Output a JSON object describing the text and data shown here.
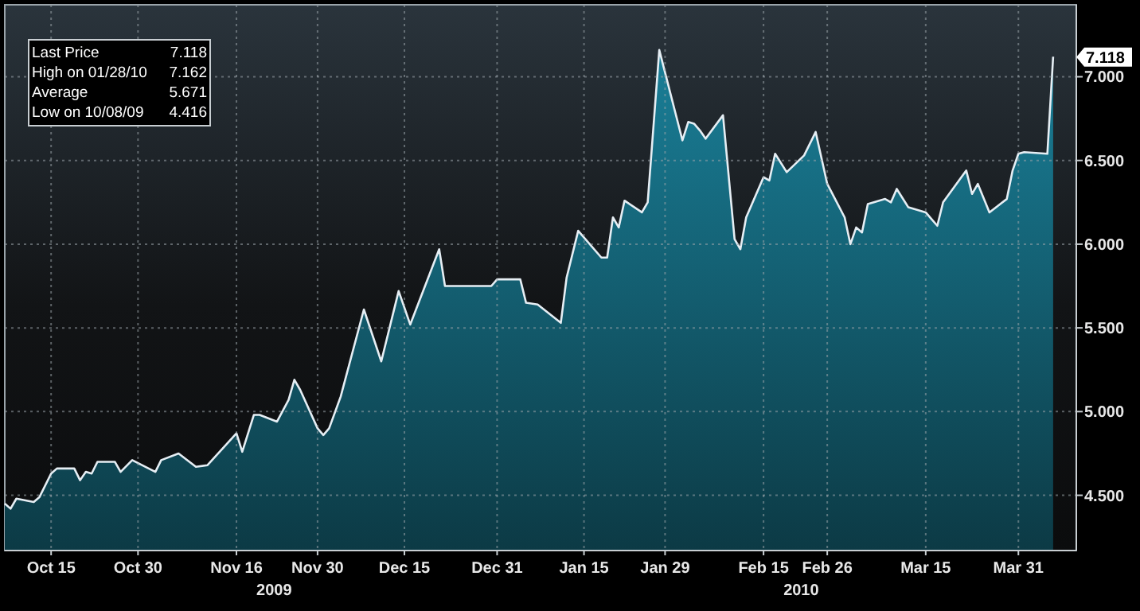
{
  "chart_data": {
    "type": "area",
    "annotations": [
      "Last Price",
      "7.118",
      "High on 01/28/10",
      "7.162",
      "Average",
      "5.671",
      "Low on 10/08/09",
      "4.416",
      {
        "text": "7.118",
        "y": 7.118
      },
      "2009",
      "2010"
    ],
    "x": [
      "2009-10-07",
      "2009-10-08",
      "2009-10-09",
      "2009-10-12",
      "2009-10-13",
      "2009-10-15",
      "2009-10-16",
      "2009-10-19",
      "2009-10-20",
      "2009-10-21",
      "2009-10-22",
      "2009-10-23",
      "2009-10-26",
      "2009-10-27",
      "2009-10-29",
      "2009-11-02",
      "2009-11-03",
      "2009-11-06",
      "2009-11-09",
      "2009-11-11",
      "2009-11-16",
      "2009-11-17",
      "2009-11-19",
      "2009-11-20",
      "2009-11-23",
      "2009-11-25",
      "2009-11-26",
      "2009-11-27",
      "2009-11-30",
      "2009-12-01",
      "2009-12-02",
      "2009-12-04",
      "2009-12-08",
      "2009-12-11",
      "2009-12-14",
      "2009-12-16",
      "2009-12-21",
      "2009-12-22",
      "2009-12-28",
      "2009-12-30",
      "2009-12-31",
      "2010-01-04",
      "2010-01-05",
      "2010-01-07",
      "2010-01-11",
      "2010-01-12",
      "2010-01-14",
      "2010-01-18",
      "2010-01-19",
      "2010-01-20",
      "2010-01-21",
      "2010-01-22",
      "2010-01-25",
      "2010-01-26",
      "2010-01-28",
      "2010-02-01",
      "2010-02-02",
      "2010-02-03",
      "2010-02-04",
      "2010-02-05",
      "2010-02-08",
      "2010-02-10",
      "2010-02-11",
      "2010-02-12",
      "2010-02-15",
      "2010-02-16",
      "2010-02-17",
      "2010-02-19",
      "2010-02-22",
      "2010-02-24",
      "2010-02-26",
      "2010-03-01",
      "2010-03-02",
      "2010-03-03",
      "2010-03-04",
      "2010-03-05",
      "2010-03-08",
      "2010-03-09",
      "2010-03-10",
      "2010-03-12",
      "2010-03-15",
      "2010-03-16",
      "2010-03-17",
      "2010-03-18",
      "2010-03-22",
      "2010-03-23",
      "2010-03-24",
      "2010-03-26",
      "2010-03-29",
      "2010-03-30",
      "2010-03-31",
      "2010-04-01",
      "2010-04-05",
      "2010-04-06"
    ],
    "series": [
      {
        "color": "#1a7f98",
        "values": [
          4.45,
          4.42,
          4.48,
          4.46,
          4.49,
          4.63,
          4.66,
          4.66,
          4.59,
          4.64,
          4.63,
          4.7,
          4.7,
          4.64,
          4.71,
          4.64,
          4.71,
          4.75,
          4.67,
          4.68,
          4.87,
          4.76,
          4.98,
          4.98,
          4.94,
          5.07,
          5.19,
          5.13,
          4.9,
          4.86,
          4.9,
          5.09,
          5.61,
          5.3,
          5.72,
          5.52,
          5.97,
          5.75,
          5.75,
          5.75,
          5.79,
          5.79,
          5.65,
          5.64,
          5.53,
          5.8,
          6.08,
          5.92,
          5.92,
          6.16,
          6.1,
          6.26,
          6.19,
          6.25,
          7.16,
          6.62,
          6.73,
          6.72,
          6.68,
          6.63,
          6.77,
          6.03,
          5.97,
          6.16,
          6.4,
          6.38,
          6.54,
          6.43,
          6.53,
          6.67,
          6.36,
          6.16,
          6.0,
          6.1,
          6.07,
          6.24,
          6.27,
          6.25,
          6.33,
          6.22,
          6.19,
          6.15,
          6.11,
          6.25,
          6.44,
          6.3,
          6.36,
          6.19,
          6.27,
          6.44,
          6.54,
          6.55,
          6.54,
          7.12
        ]
      }
    ],
    "xlim": [
      "2009-10-07",
      "2010-04-10"
    ],
    "xticks": [
      {
        "value": "2009-10-15",
        "label": "Oct 15"
      },
      {
        "value": "2009-10-30",
        "label": "Oct 30"
      },
      {
        "value": "2009-11-16",
        "label": "Nov 16"
      },
      {
        "value": "2009-11-30",
        "label": "Nov 30"
      },
      {
        "value": "2009-12-15",
        "label": "Dec 15"
      },
      {
        "value": "2009-12-31",
        "label": "Dec 31"
      },
      {
        "value": "2010-01-15",
        "label": "Jan 15"
      },
      {
        "value": "2010-01-29",
        "label": "Jan 29"
      },
      {
        "value": "2010-02-15",
        "label": "Feb 15"
      },
      {
        "value": "2010-02-26",
        "label": "Feb 26"
      },
      {
        "value": "2010-03-15",
        "label": "Mar 15"
      },
      {
        "value": "2010-03-31",
        "label": "Mar 31"
      }
    ],
    "ylim": [
      4.17,
      7.43
    ],
    "yticks": [
      {
        "value": 4.5,
        "label": "4.500"
      },
      {
        "value": 5,
        "label": "5.000"
      },
      {
        "value": 5.5,
        "label": "5.500"
      },
      {
        "value": 6,
        "label": "6.000"
      },
      {
        "value": 6.5,
        "label": "6.500"
      },
      {
        "value": 7,
        "label": "7.000"
      }
    ],
    "grid": true,
    "marker": "none",
    "line_style": "solid"
  }
}
